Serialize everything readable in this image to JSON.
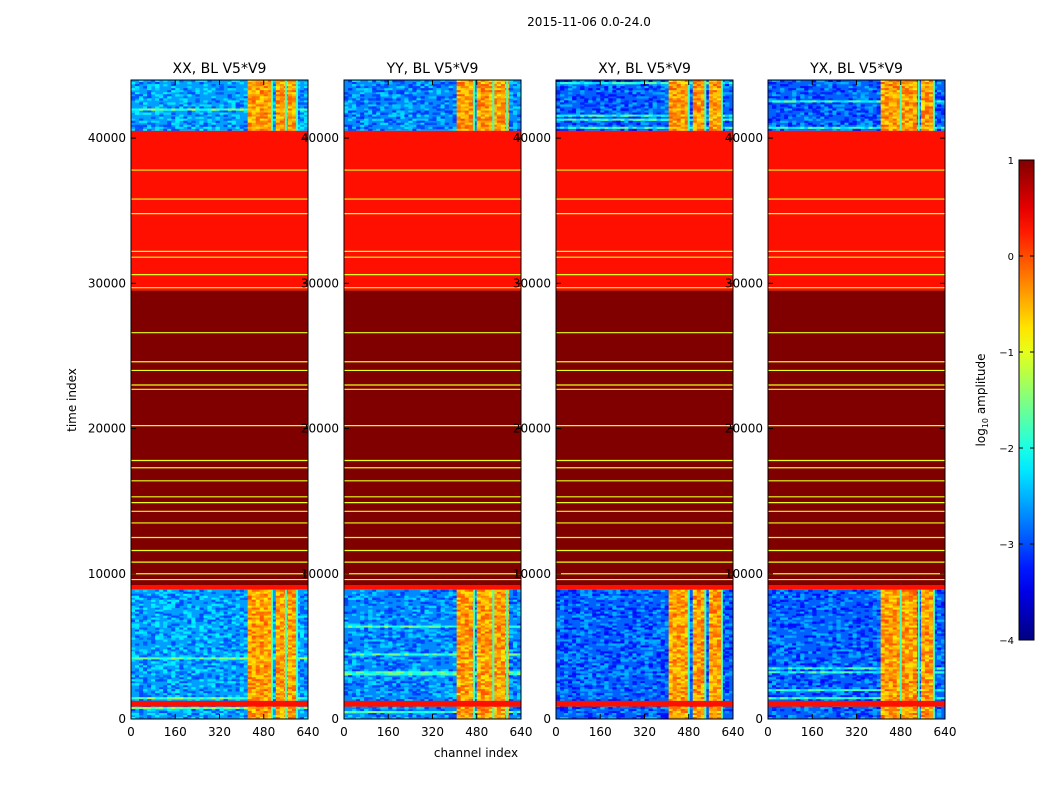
{
  "chart_data": {
    "type": "heatmap",
    "suptitle": "2015-11-06 0.0-24.0",
    "xlabel": "channel index",
    "ylabel": "time index",
    "xlim": [
      0,
      640
    ],
    "ylim": [
      0,
      44000
    ],
    "xticks": [
      0,
      160,
      320,
      480,
      640
    ],
    "yticks": [
      0,
      10000,
      20000,
      30000,
      40000
    ],
    "colormap": "jet",
    "colorbar": {
      "label": "log10 amplitude",
      "label_base": "log",
      "label_sub": "10",
      "label_rest": " amplitude",
      "range": [
        -4,
        1
      ],
      "ticks": [
        1,
        0,
        -1,
        -2,
        -3,
        -4
      ],
      "tick_labels": [
        "1",
        "0",
        "−1",
        "−2",
        "−3",
        "−4"
      ]
    },
    "time_bands": [
      {
        "from": 40500,
        "to": 44000,
        "kind": "noise"
      },
      {
        "from": 29500,
        "to": 40500,
        "kind": "flat",
        "value": 0.3
      },
      {
        "from": 9200,
        "to": 29500,
        "kind": "flat",
        "value": 1.0
      },
      {
        "from": 8900,
        "to": 9200,
        "kind": "flat",
        "value": 0.3
      },
      {
        "from": 0,
        "to": 8900,
        "kind": "noise"
      }
    ],
    "flat_stripes": [
      37800,
      35800,
      34800,
      32200,
      31800,
      30600,
      29700,
      26600,
      24600,
      24000,
      23000,
      22700,
      20200,
      17800,
      17300,
      16400,
      15300,
      14900,
      14300,
      13500,
      12500,
      11600,
      10800,
      10000,
      9600
    ],
    "panels": [
      {
        "title": "XX, BL V5*V9",
        "rfi_channels": [
          [
            420,
            510
          ],
          [
            530,
            560
          ],
          [
            570,
            600
          ]
        ],
        "background": -2.6
      },
      {
        "title": "YY, BL V5*V9",
        "rfi_channels": [
          [
            410,
            470
          ],
          [
            480,
            540
          ],
          [
            545,
            590
          ]
        ],
        "background": -2.7
      },
      {
        "title": "XY, BL V5*V9",
        "rfi_channels": [
          [
            410,
            480
          ],
          [
            490,
            540
          ],
          [
            550,
            600
          ]
        ],
        "background": -2.9
      },
      {
        "title": "YX, BL V5*V9",
        "rfi_channels": [
          [
            410,
            480
          ],
          [
            485,
            545
          ],
          [
            550,
            600
          ]
        ],
        "background": -2.9
      }
    ]
  }
}
